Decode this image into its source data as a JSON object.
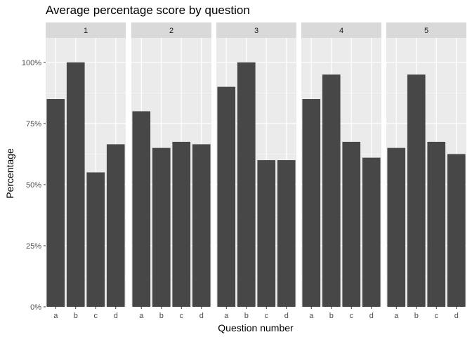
{
  "chart_data": {
    "type": "bar",
    "title": "Average percentage score by question",
    "xlabel": "Question number",
    "ylabel": "Percentage",
    "ylim": [
      0,
      1.1
    ],
    "yticks": [
      0,
      0.25,
      0.5,
      0.75,
      1.0
    ],
    "ytick_labels": [
      "0%",
      "25%",
      "50%",
      "75%",
      "100%"
    ],
    "categories": [
      "a",
      "b",
      "c",
      "d"
    ],
    "grid": true,
    "legend": "none",
    "facets": [
      {
        "label": "1",
        "values": [
          0.85,
          1.0,
          0.55,
          0.665
        ]
      },
      {
        "label": "2",
        "values": [
          0.8,
          0.65,
          0.675,
          0.665
        ]
      },
      {
        "label": "3",
        "values": [
          0.9,
          1.0,
          0.6,
          0.6
        ]
      },
      {
        "label": "4",
        "values": [
          0.85,
          0.95,
          0.675,
          0.61
        ]
      },
      {
        "label": "5",
        "values": [
          0.65,
          0.95,
          0.675,
          0.625
        ]
      }
    ],
    "colors": {
      "bar": "#474747",
      "panel_bg": "#ebebeb",
      "grid_major": "#ffffff",
      "strip_bg": "#d9d9d9",
      "tick": "#333333"
    }
  }
}
